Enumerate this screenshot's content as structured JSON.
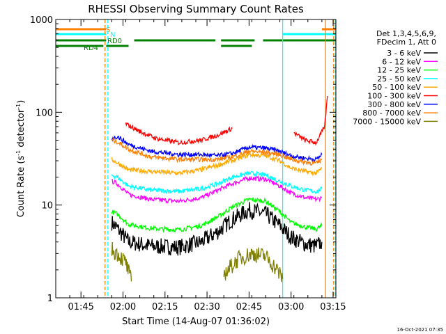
{
  "chart_data": {
    "type": "line",
    "title": "RHESSI Observing Summary Count Rates",
    "xlabel": "Start Time (14-Aug-07 01:36:02)",
    "ylabel_main": "Count Rate (s",
    "ylabel_sup1": "-1",
    "ylabel_mid": " detector",
    "ylabel_sup2": "-1",
    "ylabel_end": ")",
    "ylog": true,
    "ylim": [
      1,
      1000
    ],
    "xlim_minutes": [
      0,
      100
    ],
    "y_ticks": [
      {
        "value": 1,
        "label": "1"
      },
      {
        "value": 10,
        "label": "10"
      },
      {
        "value": 100,
        "label": "100"
      },
      {
        "value": 1000,
        "label": "1000"
      }
    ],
    "x_ticks": [
      {
        "minute": 9,
        "label": "01:45"
      },
      {
        "minute": 24,
        "label": "02:00"
      },
      {
        "minute": 39,
        "label": "02:15"
      },
      {
        "minute": 54,
        "label": "02:30"
      },
      {
        "minute": 69,
        "label": "02:45"
      },
      {
        "minute": 84,
        "label": "03:00"
      },
      {
        "minute": 99,
        "label": "03:15"
      }
    ],
    "legend_header": [
      "Det 1,3,4,5,6,9,",
      "FDecim 1, Att 0"
    ],
    "series": [
      {
        "name": "3 - 6 keV",
        "color": "#000000",
        "segments": [
          [
            [
              20,
              6.5
            ],
            [
              22,
              5.6
            ],
            [
              26,
              4.0
            ],
            [
              34,
              3.6
            ],
            [
              44,
              3.5
            ],
            [
              52,
              4.0
            ],
            [
              58,
              5.2
            ],
            [
              63,
              7.0
            ],
            [
              69,
              8.8
            ],
            [
              75,
              8.0
            ],
            [
              80,
              6.0
            ],
            [
              84,
              4.5
            ],
            [
              89,
              3.8
            ],
            [
              93,
              3.6
            ],
            [
              95,
              4.0
            ]
          ]
        ]
      },
      {
        "name": "6 - 12 keV",
        "color": "#ff00ff",
        "segments": [
          [
            [
              20,
              18
            ],
            [
              22,
              17
            ],
            [
              26,
              13
            ],
            [
              34,
              11.5
            ],
            [
              44,
              11
            ],
            [
              52,
              12
            ],
            [
              58,
              14.5
            ],
            [
              63,
              17
            ],
            [
              69,
              19.5
            ],
            [
              75,
              19
            ],
            [
              80,
              16
            ],
            [
              84,
              13.5
            ],
            [
              89,
              12
            ],
            [
              93,
              11.5
            ],
            [
              95,
              12
            ]
          ]
        ]
      },
      {
        "name": "12 - 25 keV",
        "color": "#00ff00",
        "segments": [
          [
            [
              20,
              8.5
            ],
            [
              22,
              8.0
            ],
            [
              26,
              6.2
            ],
            [
              34,
              5.6
            ],
            [
              44,
              5.4
            ],
            [
              52,
              6.0
            ],
            [
              58,
              7.5
            ],
            [
              63,
              9.5
            ],
            [
              69,
              11.5
            ],
            [
              75,
              11
            ],
            [
              80,
              8.5
            ],
            [
              84,
              6.5
            ],
            [
              89,
              5.8
            ],
            [
              93,
              5.5
            ],
            [
              95,
              6.0
            ]
          ]
        ]
      },
      {
        "name": "25 - 50 keV",
        "color": "#00ffff",
        "segments": [
          [
            [
              20,
              21
            ],
            [
              22,
              20
            ],
            [
              26,
              16
            ],
            [
              34,
              14.5
            ],
            [
              44,
              14
            ],
            [
              52,
              15
            ],
            [
              58,
              17
            ],
            [
              63,
              20
            ],
            [
              69,
              22
            ],
            [
              75,
              21
            ],
            [
              80,
              18
            ],
            [
              84,
              16
            ],
            [
              89,
              14.5
            ],
            [
              93,
              14
            ],
            [
              95,
              15
            ]
          ]
        ]
      },
      {
        "name": "50 - 100 keV",
        "color": "#ffaa00",
        "segments": [
          [
            [
              20,
              31
            ],
            [
              26,
              24
            ],
            [
              34,
              23
            ],
            [
              44,
              22
            ],
            [
              52,
              24
            ],
            [
              58,
              27
            ],
            [
              63,
              30
            ],
            [
              69,
              35
            ],
            [
              75,
              34
            ],
            [
              80,
              30
            ],
            [
              84,
              25
            ],
            [
              89,
              23
            ],
            [
              93,
              22
            ],
            [
              95,
              25
            ]
          ]
        ]
      },
      {
        "name": "100 - 300 keV",
        "color": "#ff0000",
        "segments": [
          [
            [
              25,
              75
            ],
            [
              30,
              62
            ],
            [
              36,
              52
            ],
            [
              44,
              47
            ],
            [
              52,
              50
            ],
            [
              58,
              57
            ],
            [
              63,
              67
            ]
          ],
          [
            [
              85,
              60
            ],
            [
              89,
              50
            ],
            [
              93,
              47
            ],
            [
              96,
              70
            ],
            [
              97,
              150
            ]
          ]
        ]
      },
      {
        "name": "300 - 800 keV",
        "color": "#0000ff",
        "segments": [
          [
            [
              20,
              52
            ],
            [
              22,
              55
            ],
            [
              26,
              45
            ],
            [
              34,
              38
            ],
            [
              44,
              35
            ],
            [
              52,
              35
            ],
            [
              58,
              34
            ],
            [
              63,
              36
            ],
            [
              69,
              42
            ],
            [
              75,
              41
            ],
            [
              80,
              38
            ],
            [
              84,
              34
            ],
            [
              89,
              32
            ],
            [
              93,
              31
            ],
            [
              95,
              35
            ]
          ]
        ]
      },
      {
        "name": "800 - 7000 keV",
        "color": "#ff7f00",
        "segments": [
          [
            [
              20,
              50
            ],
            [
              22,
              48
            ],
            [
              26,
              40
            ],
            [
              34,
              33
            ],
            [
              44,
              31
            ],
            [
              52,
              31
            ],
            [
              58,
              31
            ],
            [
              63,
              33
            ],
            [
              69,
              38
            ],
            [
              75,
              37
            ],
            [
              80,
              35
            ],
            [
              84,
              31
            ],
            [
              89,
              29
            ],
            [
              93,
              28
            ],
            [
              95,
              31
            ]
          ]
        ]
      },
      {
        "name": "7000 - 15000 keV",
        "color": "#808000",
        "segments": [
          [
            [
              20,
              3.3
            ],
            [
              22,
              3.0
            ],
            [
              25,
              2.4
            ],
            [
              27,
              1.5
            ]
          ],
          [
            [
              60,
              1.8
            ],
            [
              65,
              2.6
            ],
            [
              70,
              3.0
            ],
            [
              75,
              2.8
            ],
            [
              79,
              2.0
            ],
            [
              81,
              1.6
            ]
          ]
        ]
      }
    ],
    "flags": [
      {
        "label": "S",
        "color": "#ff7f00",
        "segments": [
          [
            0,
            18
          ],
          [
            95,
            100
          ]
        ]
      },
      {
        "label": "N",
        "color": "#00ffff",
        "segments": [
          [
            0,
            18
          ],
          [
            81,
            100
          ]
        ]
      },
      {
        "label": "RD0",
        "color": "#008000",
        "segments": [
          [
            0,
            18
          ],
          [
            28,
            57
          ],
          [
            59,
            71
          ],
          [
            74,
            100
          ]
        ]
      },
      {
        "label": "RD4",
        "color": "#008000",
        "segments": [
          [
            0,
            17
          ],
          [
            18,
            26
          ],
          [
            59,
            70
          ]
        ]
      }
    ],
    "markers": [
      {
        "minute": 17.6,
        "color": "#ff7f00",
        "style": "dashed"
      },
      {
        "minute": 18.6,
        "color": "#00ffff",
        "style": "dashed"
      },
      {
        "minute": 81.0,
        "color": "#00ffff",
        "style": "solid"
      },
      {
        "minute": 96.3,
        "color": "#ff7f00",
        "style": "solid"
      },
      {
        "minute": 99.2,
        "color": "#ff7f00",
        "style": "dashed"
      },
      {
        "minute": 99.8,
        "color": "#00ffff",
        "style": "dashed"
      }
    ]
  },
  "footer": {
    "timestamp": "16-Oct-2021 07:35"
  }
}
